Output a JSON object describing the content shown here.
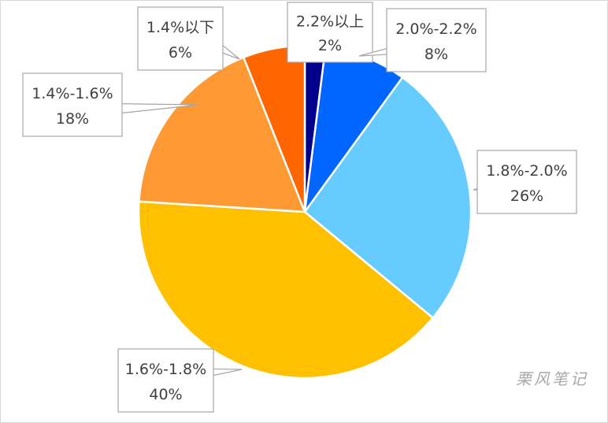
{
  "chart_data": {
    "type": "pie",
    "categories": [
      "2.2%以上",
      "2.0%-2.2%",
      "1.8%-2.0%",
      "1.6%-1.8%",
      "1.4%-1.6%",
      "1.4%以下"
    ],
    "values": [
      2,
      8,
      26,
      40,
      18,
      6
    ],
    "value_labels": [
      "2%",
      "8%",
      "26%",
      "40%",
      "18%",
      "6%"
    ],
    "colors": [
      "#00008b",
      "#0066ff",
      "#66ccff",
      "#ffc000",
      "#ff9933",
      "#ff6600"
    ],
    "start_angle_deg": 0,
    "direction": "clockwise",
    "legend": "none (callout data labels)"
  },
  "watermark": "栗风笔记"
}
